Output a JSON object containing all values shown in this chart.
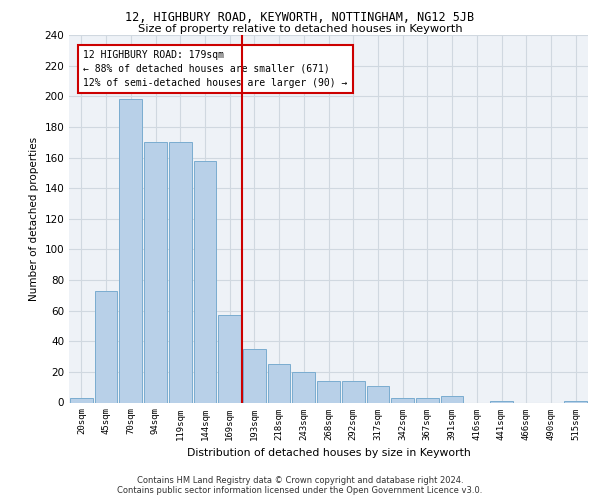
{
  "title1": "12, HIGHBURY ROAD, KEYWORTH, NOTTINGHAM, NG12 5JB",
  "title2": "Size of property relative to detached houses in Keyworth",
  "xlabel": "Distribution of detached houses by size in Keyworth",
  "ylabel": "Number of detached properties",
  "bar_labels": [
    "20sqm",
    "45sqm",
    "70sqm",
    "94sqm",
    "119sqm",
    "144sqm",
    "169sqm",
    "193sqm",
    "218sqm",
    "243sqm",
    "268sqm",
    "292sqm",
    "317sqm",
    "342sqm",
    "367sqm",
    "391sqm",
    "416sqm",
    "441sqm",
    "466sqm",
    "490sqm",
    "515sqm"
  ],
  "bar_values": [
    3,
    73,
    198,
    170,
    170,
    158,
    57,
    35,
    25,
    20,
    14,
    14,
    11,
    3,
    3,
    4,
    0,
    1,
    0,
    0,
    1
  ],
  "bar_color": "#b8d0e8",
  "bar_edge_color": "#7aacd0",
  "grid_color": "#d0d8e0",
  "bg_color": "#eef2f7",
  "vline_color": "#cc0000",
  "annotation_line1": "12 HIGHBURY ROAD: 179sqm",
  "annotation_line2": "← 88% of detached houses are smaller (671)",
  "annotation_line3": "12% of semi-detached houses are larger (90) →",
  "annotation_box_color": "#ffffff",
  "annotation_box_edge": "#cc0000",
  "footer_line1": "Contains HM Land Registry data © Crown copyright and database right 2024.",
  "footer_line2": "Contains public sector information licensed under the Open Government Licence v3.0.",
  "ylim": [
    0,
    240
  ],
  "yticks": [
    0,
    20,
    40,
    60,
    80,
    100,
    120,
    140,
    160,
    180,
    200,
    220,
    240
  ],
  "vline_pos": 6.5
}
